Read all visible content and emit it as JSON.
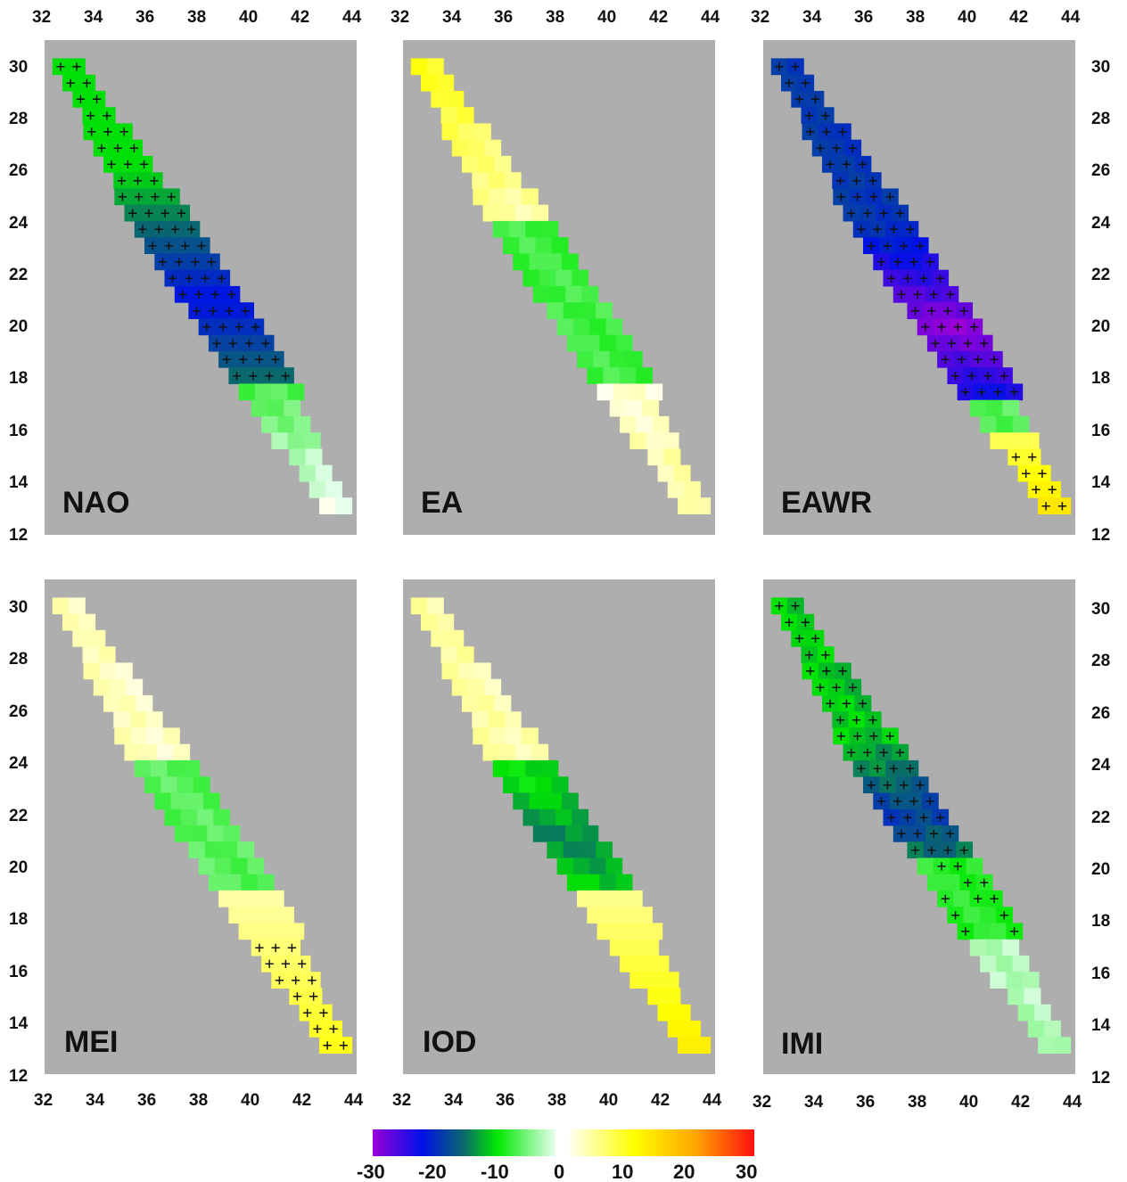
{
  "figure": {
    "colorbar": {
      "tick_labels": [
        "-30",
        "-20",
        "-10",
        "0",
        "10",
        "20",
        "30"
      ],
      "range": [
        -30,
        30
      ],
      "negative_colors": [
        "#9a00d8",
        "#0010e8",
        "#0a6a6a",
        "#00e800",
        "#e8fff0"
      ],
      "positive_colors": [
        "#fffff0",
        "#ffff00",
        "#ffa500",
        "#ff1010"
      ]
    },
    "map_background": "#aeaeae",
    "significance_marker": "+",
    "longitude_ticks": [
      "32",
      "34",
      "36",
      "38",
      "40",
      "42",
      "44"
    ],
    "latitude_ticks": [
      "30",
      "28",
      "26",
      "24",
      "22",
      "20",
      "18",
      "16",
      "14",
      "12"
    ],
    "panels": [
      {
        "label": "NAO",
        "field": "nao"
      },
      {
        "label": "EA",
        "field": "ea"
      },
      {
        "label": "EAWR",
        "field": "eawr"
      },
      {
        "label": "MEI",
        "field": "mei"
      },
      {
        "label": "IOD",
        "field": "iod"
      },
      {
        "label": "IMI",
        "field": "imi"
      }
    ]
  }
}
